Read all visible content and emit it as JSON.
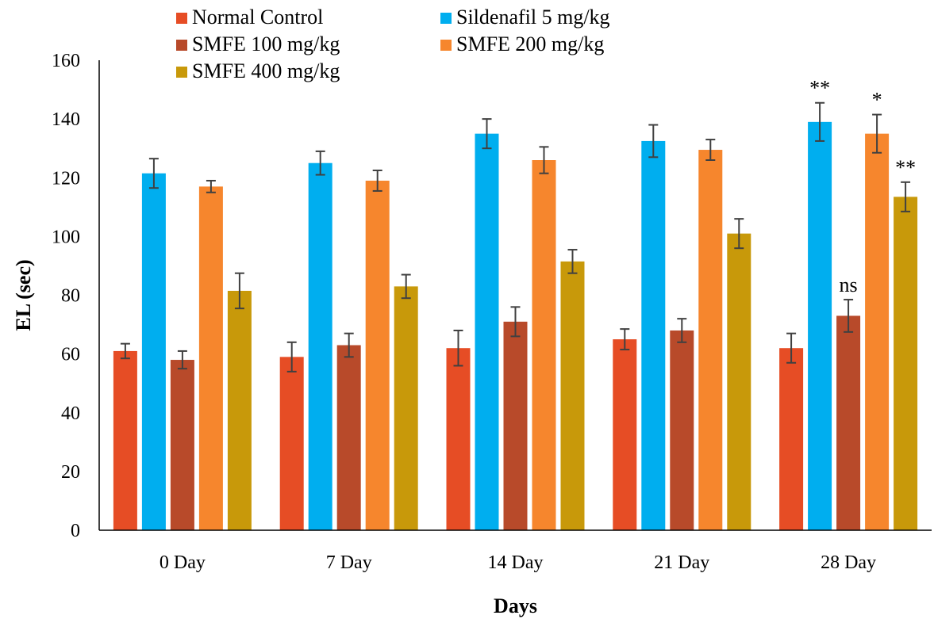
{
  "chart_data": {
    "type": "bar",
    "xlabel": "Days",
    "ylabel": "EL (sec)",
    "ylim": [
      0,
      160
    ],
    "yticks": [
      0,
      20,
      40,
      60,
      80,
      100,
      120,
      140,
      160
    ],
    "categories": [
      "0 Day",
      "7 Day",
      "14 Day",
      "21 Day",
      "28 Day"
    ],
    "legend_position": "top",
    "grid": false,
    "series": [
      {
        "name": "Normal Control",
        "color": "#E64D25",
        "values": [
          61,
          59,
          62,
          65,
          62
        ],
        "errors": [
          2.5,
          5,
          6,
          3.5,
          5
        ]
      },
      {
        "name": "Sildenafil 5 mg/kg",
        "color": "#00AEEF",
        "values": [
          121.5,
          125,
          135,
          132.5,
          139
        ],
        "errors": [
          5,
          4,
          5,
          5.5,
          6.5
        ]
      },
      {
        "name": "SMFE 100 mg/kg",
        "color": "#B84A2A",
        "values": [
          58,
          63,
          71,
          68,
          73
        ],
        "errors": [
          3,
          4,
          5,
          4,
          5.5
        ]
      },
      {
        "name": "SMFE 200 mg/kg",
        "color": "#F6862D",
        "values": [
          117,
          119,
          126,
          129.5,
          135
        ],
        "errors": [
          2,
          3.5,
          4.5,
          3.5,
          6.5
        ]
      },
      {
        "name": "SMFE 400 mg/kg",
        "color": "#C8990A",
        "values": [
          81.5,
          83,
          91.5,
          101,
          113.5
        ],
        "errors": [
          6,
          4,
          4,
          5,
          5
        ]
      }
    ],
    "annotations": [
      {
        "category": "28 Day",
        "series": "Sildenafil 5 mg/kg",
        "text": "**"
      },
      {
        "category": "28 Day",
        "series": "SMFE 100 mg/kg",
        "text": "ns"
      },
      {
        "category": "28 Day",
        "series": "SMFE 200 mg/kg",
        "text": "*"
      },
      {
        "category": "28 Day",
        "series": "SMFE 400 mg/kg",
        "text": "**"
      }
    ]
  }
}
